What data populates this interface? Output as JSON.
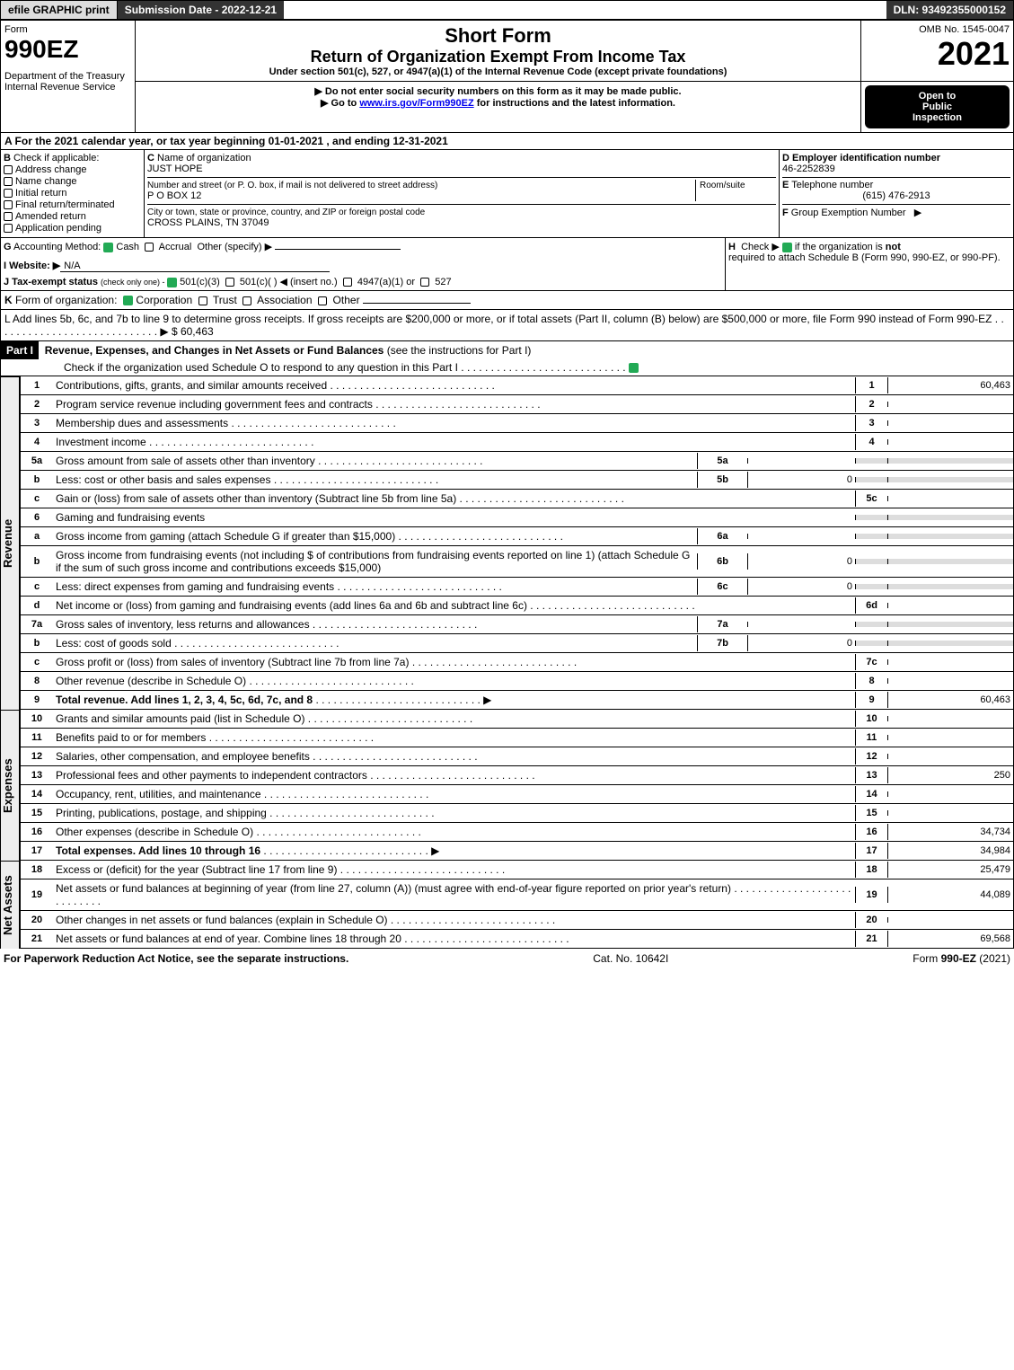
{
  "topbar": {
    "efile": "efile GRAPHIC print",
    "submission": "Submission Date - 2022-12-21",
    "dln": "DLN: 93492355000152"
  },
  "header": {
    "form_word": "Form",
    "form_num": "990EZ",
    "dept": "Department of the Treasury",
    "irs": "Internal Revenue Service",
    "title1": "Short Form",
    "title2": "Return of Organization Exempt From Income Tax",
    "sub1": "Under section 501(c), 527, or 4947(a)(1) of the Internal Revenue Code (except private foundations)",
    "sub2": "▶ Do not enter social security numbers on this form as it may be made public.",
    "sub3_pre": "▶ Go to ",
    "sub3_link": "www.irs.gov/Form990EZ",
    "sub3_post": " for instructions and the latest information.",
    "omb": "OMB No. 1545-0047",
    "year": "2021",
    "open1": "Open to",
    "open2": "Public",
    "open3": "Inspection"
  },
  "lineA": "A  For the 2021 calendar year, or tax year beginning 01-01-2021 , and ending 12-31-2021",
  "boxB": {
    "title": "B",
    "subtitle": "Check if applicable:",
    "opts": [
      "Address change",
      "Name change",
      "Initial return",
      "Final return/terminated",
      "Amended return",
      "Application pending"
    ]
  },
  "boxC": {
    "c_label": "C",
    "name_label": "Name of organization",
    "name": "JUST HOPE",
    "addr_label": "Number and street (or P. O. box, if mail is not delivered to street address)",
    "room_label": "Room/suite",
    "addr": "P O BOX 12",
    "city_label": "City or town, state or province, country, and ZIP or foreign postal code",
    "city": "CROSS PLAINS, TN  37049"
  },
  "boxD": {
    "d_label": "D Employer identification number",
    "ein": "46-2252839",
    "e_label": "E",
    "phone_label": "Telephone number",
    "phone": "(615) 476-2913",
    "f_label": "F",
    "group_label": "Group Exemption Number",
    "arrow": "▶"
  },
  "lineG": {
    "label": "G",
    "text": "Accounting Method:",
    "cash": "Cash",
    "accrual": "Accrual",
    "other": "Other (specify) ▶"
  },
  "lineH": {
    "label": "H",
    "text_pre": "Check ▶ ",
    "text_post": " if the organization is ",
    "not": "not",
    "rest": "required to attach Schedule B (Form 990, 990-EZ, or 990-PF)."
  },
  "lineI": {
    "label": "I Website: ▶",
    "val": "N/A"
  },
  "lineJ": {
    "label": "J Tax-exempt status",
    "rest": "(check only one) - ",
    "o1": "501(c)(3)",
    "o2": "501(c)(  ) ◀ (insert no.)",
    "o3": "4947(a)(1) or",
    "o4": "527"
  },
  "lineK": {
    "label": "K",
    "text": "Form of organization:",
    "o1": "Corporation",
    "o2": "Trust",
    "o3": "Association",
    "o4": "Other"
  },
  "lineL": {
    "text": "L Add lines 5b, 6c, and 7b to line 9 to determine gross receipts. If gross receipts are $200,000 or more, or if total assets (Part II, column (B) below) are $500,000 or more, file Form 990 instead of Form 990-EZ",
    "amount": "▶ $ 60,463"
  },
  "part1": {
    "hdr": "Part I",
    "title": "Revenue, Expenses, and Changes in Net Assets or Fund Balances",
    "title_paren": "(see the instructions for Part I)",
    "check_line": "Check if the organization used Schedule O to respond to any question in this Part I"
  },
  "revenue": {
    "side": "Revenue",
    "r1": {
      "n": "1",
      "d": "Contributions, gifts, grants, and similar amounts received",
      "num": "1",
      "v": "60,463"
    },
    "r2": {
      "n": "2",
      "d": "Program service revenue including government fees and contracts",
      "num": "2",
      "v": ""
    },
    "r3": {
      "n": "3",
      "d": "Membership dues and assessments",
      "num": "3",
      "v": ""
    },
    "r4": {
      "n": "4",
      "d": "Investment income",
      "num": "4",
      "v": ""
    },
    "r5a": {
      "n": "5a",
      "d": "Gross amount from sale of assets other than inventory",
      "sub": "5a",
      "sv": ""
    },
    "r5b": {
      "n": "b",
      "d": "Less: cost or other basis and sales expenses",
      "sub": "5b",
      "sv": "0"
    },
    "r5c": {
      "n": "c",
      "d": "Gain or (loss) from sale of assets other than inventory (Subtract line 5b from line 5a)",
      "num": "5c",
      "v": ""
    },
    "r6": {
      "n": "6",
      "d": "Gaming and fundraising events"
    },
    "r6a": {
      "n": "a",
      "d": "Gross income from gaming (attach Schedule G if greater than $15,000)",
      "sub": "6a",
      "sv": ""
    },
    "r6b": {
      "n": "b",
      "d": "Gross income from fundraising events (not including $              of contributions from fundraising events reported on line 1) (attach Schedule G if the sum of such gross income and contributions exceeds $15,000)",
      "sub": "6b",
      "sv": "0"
    },
    "r6c": {
      "n": "c",
      "d": "Less: direct expenses from gaming and fundraising events",
      "sub": "6c",
      "sv": "0"
    },
    "r6d": {
      "n": "d",
      "d": "Net income or (loss) from gaming and fundraising events (add lines 6a and 6b and subtract line 6c)",
      "num": "6d",
      "v": ""
    },
    "r7a": {
      "n": "7a",
      "d": "Gross sales of inventory, less returns and allowances",
      "sub": "7a",
      "sv": ""
    },
    "r7b": {
      "n": "b",
      "d": "Less: cost of goods sold",
      "sub": "7b",
      "sv": "0"
    },
    "r7c": {
      "n": "c",
      "d": "Gross profit or (loss) from sales of inventory (Subtract line 7b from line 7a)",
      "num": "7c",
      "v": ""
    },
    "r8": {
      "n": "8",
      "d": "Other revenue (describe in Schedule O)",
      "num": "8",
      "v": ""
    },
    "r9": {
      "n": "9",
      "d": "Total revenue. Add lines 1, 2, 3, 4, 5c, 6d, 7c, and 8",
      "num": "9",
      "v": "60,463",
      "bold": true
    }
  },
  "expenses": {
    "side": "Expenses",
    "r10": {
      "n": "10",
      "d": "Grants and similar amounts paid (list in Schedule O)",
      "num": "10",
      "v": ""
    },
    "r11": {
      "n": "11",
      "d": "Benefits paid to or for members",
      "num": "11",
      "v": ""
    },
    "r12": {
      "n": "12",
      "d": "Salaries, other compensation, and employee benefits",
      "num": "12",
      "v": ""
    },
    "r13": {
      "n": "13",
      "d": "Professional fees and other payments to independent contractors",
      "num": "13",
      "v": "250"
    },
    "r14": {
      "n": "14",
      "d": "Occupancy, rent, utilities, and maintenance",
      "num": "14",
      "v": ""
    },
    "r15": {
      "n": "15",
      "d": "Printing, publications, postage, and shipping",
      "num": "15",
      "v": ""
    },
    "r16": {
      "n": "16",
      "d": "Other expenses (describe in Schedule O)",
      "num": "16",
      "v": "34,734"
    },
    "r17": {
      "n": "17",
      "d": "Total expenses. Add lines 10 through 16",
      "num": "17",
      "v": "34,984",
      "bold": true
    }
  },
  "netassets": {
    "side": "Net Assets",
    "r18": {
      "n": "18",
      "d": "Excess or (deficit) for the year (Subtract line 17 from line 9)",
      "num": "18",
      "v": "25,479"
    },
    "r19": {
      "n": "19",
      "d": "Net assets or fund balances at beginning of year (from line 27, column (A)) (must agree with end-of-year figure reported on prior year's return)",
      "num": "19",
      "v": "44,089"
    },
    "r20": {
      "n": "20",
      "d": "Other changes in net assets or fund balances (explain in Schedule O)",
      "num": "20",
      "v": ""
    },
    "r21": {
      "n": "21",
      "d": "Net assets or fund balances at end of year. Combine lines 18 through 20",
      "num": "21",
      "v": "69,568"
    }
  },
  "footer": {
    "left": "For Paperwork Reduction Act Notice, see the separate instructions.",
    "mid": "Cat. No. 10642I",
    "right_pre": "Form ",
    "right_b": "990-EZ",
    "right_post": " (2021)"
  }
}
